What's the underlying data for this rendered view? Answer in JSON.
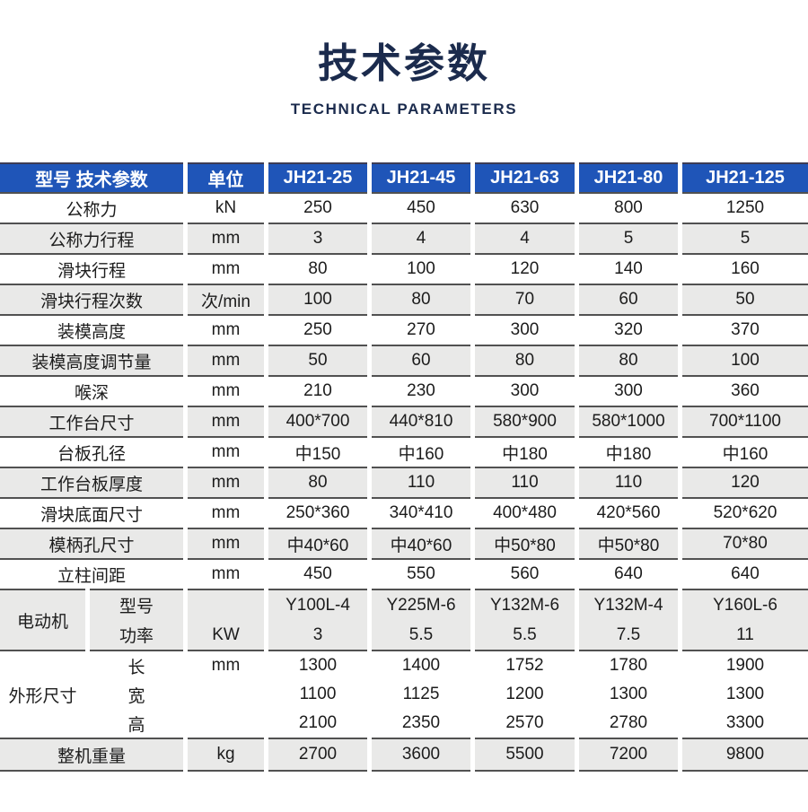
{
  "page": {
    "title": "技术参数",
    "subtitle": "TECHNICAL PARAMETERS"
  },
  "colors": {
    "header_bg": "#1f55b8",
    "alt_row_bg": "#e9e9e8",
    "border": "#515151",
    "title_text": "#1b2b4d",
    "header_text": "#ffffff"
  },
  "table": {
    "header": {
      "label": "型号 技术参数",
      "unit": "单位",
      "models": [
        "JH21-25",
        "JH21-45",
        "JH21-63",
        "JH21-80",
        "JH21-125"
      ]
    },
    "rows": [
      {
        "label": "公称力",
        "unit": "kN",
        "values": [
          "250",
          "450",
          "630",
          "800",
          "1250"
        ]
      },
      {
        "label": "公称力行程",
        "unit": "mm",
        "values": [
          "3",
          "4",
          "4",
          "5",
          "5"
        ]
      },
      {
        "label": "滑块行程",
        "unit": "mm",
        "values": [
          "80",
          "100",
          "120",
          "140",
          "160"
        ]
      },
      {
        "label": "滑块行程次数",
        "unit": "次/min",
        "values": [
          "100",
          "80",
          "70",
          "60",
          "50"
        ]
      },
      {
        "label": "装模高度",
        "unit": "mm",
        "values": [
          "250",
          "270",
          "300",
          "320",
          "370"
        ]
      },
      {
        "label": "装模高度调节量",
        "unit": "mm",
        "values": [
          "50",
          "60",
          "80",
          "80",
          "100"
        ]
      },
      {
        "label": "喉深",
        "unit": "mm",
        "values": [
          "210",
          "230",
          "300",
          "300",
          "360"
        ]
      },
      {
        "label": "工作台尺寸",
        "unit": "mm",
        "values": [
          "400*700",
          "440*810",
          "580*900",
          "580*1000",
          "700*1100"
        ]
      },
      {
        "label": "台板孔径",
        "unit": "mm",
        "values": [
          "中150",
          "中160",
          "中180",
          "中180",
          "中160"
        ]
      },
      {
        "label": "工作台板厚度",
        "unit": "mm",
        "values": [
          "80",
          "110",
          "110",
          "110",
          "120"
        ]
      },
      {
        "label": "滑块底面尺寸",
        "unit": "mm",
        "values": [
          "250*360",
          "340*410",
          "400*480",
          "420*560",
          "520*620"
        ]
      },
      {
        "label": "模柄孔尺寸",
        "unit": "mm",
        "values": [
          "中40*60",
          "中40*60",
          "中50*80",
          "中50*80",
          "70*80"
        ]
      },
      {
        "label": "立柱间距",
        "unit": "mm",
        "values": [
          "450",
          "550",
          "560",
          "640",
          "640"
        ]
      }
    ],
    "motor": {
      "label": "电动机",
      "sub_labels": [
        "型号",
        "功率"
      ],
      "unit": "KW",
      "models": [
        "Y100L-4",
        "Y225M-6",
        "Y132M-6",
        "Y132M-4",
        "Y160L-6"
      ],
      "powers": [
        "3",
        "5.5",
        "5.5",
        "7.5",
        "11"
      ]
    },
    "dimensions": {
      "label": "外形尺寸",
      "sub_labels": [
        "长",
        "宽",
        "高"
      ],
      "unit": "mm",
      "length": [
        "1300",
        "1400",
        "1752",
        "1780",
        "1900"
      ],
      "width": [
        "1100",
        "1125",
        "1200",
        "1300",
        "1300"
      ],
      "height": [
        "2100",
        "2350",
        "2570",
        "2780",
        "3300"
      ]
    },
    "weight": {
      "label": "整机重量",
      "unit": "kg",
      "values": [
        "2700",
        "3600",
        "5500",
        "7200",
        "9800"
      ]
    }
  }
}
